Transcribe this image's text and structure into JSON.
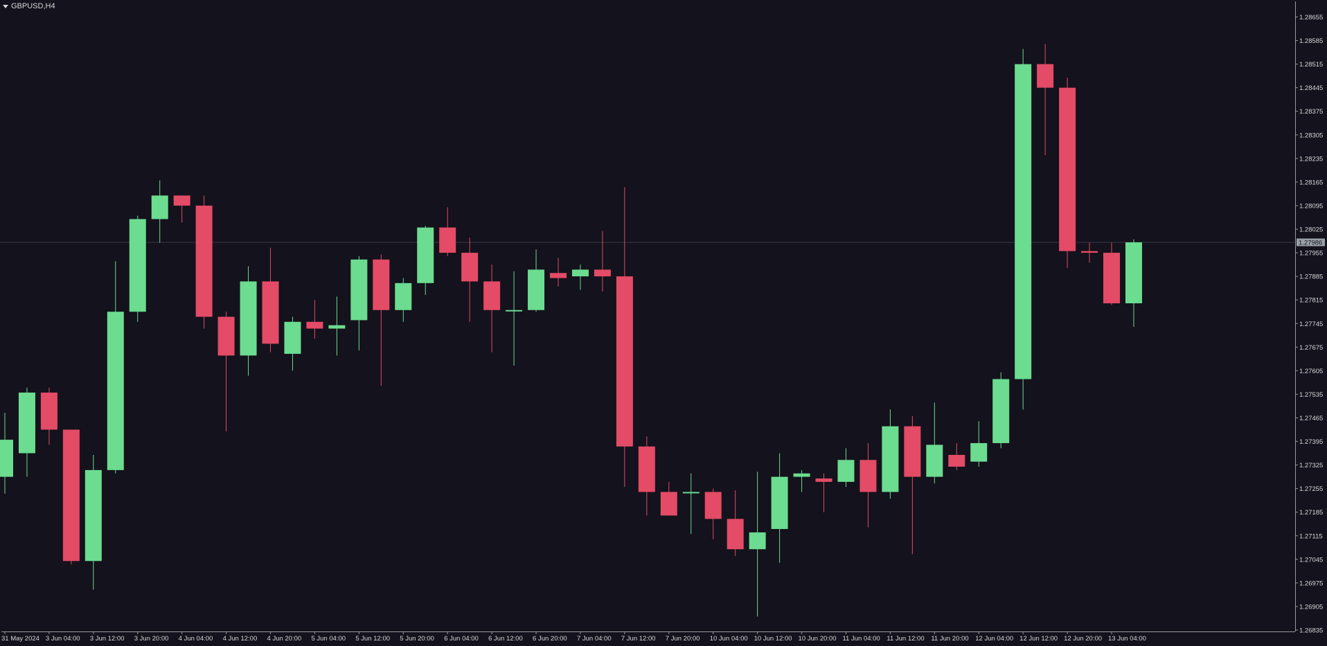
{
  "window": {
    "symbol_title": "GBPUSD,H4"
  },
  "colors": {
    "background": "#14121c",
    "bull": "#6bdc90",
    "bear": "#e34b66",
    "axis": "#9a9a9a",
    "text": "#d6d6d6",
    "current_line": "#3a3846",
    "price_tag_bg": "#9aa0aa"
  },
  "chart_data": {
    "type": "candlestick",
    "symbol": "GBPUSD",
    "timeframe": "H4",
    "ylim": [
      1.26835,
      1.28655
    ],
    "y_ticks": [
      "1.28655",
      "1.28585",
      "1.28515",
      "1.28445",
      "1.28375",
      "1.28305",
      "1.28235",
      "1.28165",
      "1.28095",
      "1.28025",
      "1.27955",
      "1.27885",
      "1.27815",
      "1.27745",
      "1.27675",
      "1.27605",
      "1.27535",
      "1.27465",
      "1.27395",
      "1.27325",
      "1.27255",
      "1.27185",
      "1.27115",
      "1.27045",
      "1.26975",
      "1.26905",
      "1.26835"
    ],
    "current_price": "1.27986",
    "x_ticks": [
      {
        "label": "31 May 2024",
        "index": 0
      },
      {
        "label": "3 Jun 04:00",
        "index": 2
      },
      {
        "label": "3 Jun 12:00",
        "index": 4
      },
      {
        "label": "3 Jun 20:00",
        "index": 6
      },
      {
        "label": "4 Jun 04:00",
        "index": 8
      },
      {
        "label": "4 Jun 12:00",
        "index": 10
      },
      {
        "label": "4 Jun 20:00",
        "index": 12
      },
      {
        "label": "5 Jun 04:00",
        "index": 14
      },
      {
        "label": "5 Jun 12:00",
        "index": 16
      },
      {
        "label": "5 Jun 20:00",
        "index": 18
      },
      {
        "label": "6 Jun 04:00",
        "index": 20
      },
      {
        "label": "6 Jun 12:00",
        "index": 22
      },
      {
        "label": "6 Jun 20:00",
        "index": 24
      },
      {
        "label": "7 Jun 04:00",
        "index": 26
      },
      {
        "label": "7 Jun 12:00",
        "index": 28
      },
      {
        "label": "7 Jun 20:00",
        "index": 30
      },
      {
        "label": "10 Jun 04:00",
        "index": 32
      },
      {
        "label": "10 Jun 12:00",
        "index": 34
      },
      {
        "label": "10 Jun 20:00",
        "index": 36
      },
      {
        "label": "11 Jun 04:00",
        "index": 38
      },
      {
        "label": "11 Jun 12:00",
        "index": 40
      },
      {
        "label": "11 Jun 20:00",
        "index": 42
      },
      {
        "label": "12 Jun 04:00",
        "index": 44
      },
      {
        "label": "12 Jun 12:00",
        "index": 46
      },
      {
        "label": "12 Jun 20:00",
        "index": 48
      },
      {
        "label": "13 Jun 04:00",
        "index": 50
      }
    ],
    "candles": [
      {
        "o": 1.2729,
        "h": 1.2748,
        "l": 1.2724,
        "c": 1.274
      },
      {
        "o": 1.2736,
        "h": 1.27555,
        "l": 1.2729,
        "c": 1.2754
      },
      {
        "o": 1.2754,
        "h": 1.27555,
        "l": 1.27385,
        "c": 1.2743
      },
      {
        "o": 1.2743,
        "h": 1.2743,
        "l": 1.2703,
        "c": 1.2704
      },
      {
        "o": 1.2704,
        "h": 1.27355,
        "l": 1.26955,
        "c": 1.2731
      },
      {
        "o": 1.2731,
        "h": 1.2793,
        "l": 1.273,
        "c": 1.2778
      },
      {
        "o": 1.2778,
        "h": 1.28065,
        "l": 1.2775,
        "c": 1.28055
      },
      {
        "o": 1.28055,
        "h": 1.2817,
        "l": 1.27985,
        "c": 1.28125
      },
      {
        "o": 1.28125,
        "h": 1.28125,
        "l": 1.28045,
        "c": 1.28095
      },
      {
        "o": 1.28095,
        "h": 1.28125,
        "l": 1.2773,
        "c": 1.27765
      },
      {
        "o": 1.27765,
        "h": 1.2778,
        "l": 1.27425,
        "c": 1.2765
      },
      {
        "o": 1.2765,
        "h": 1.27915,
        "l": 1.2759,
        "c": 1.2787
      },
      {
        "o": 1.2787,
        "h": 1.2797,
        "l": 1.2766,
        "c": 1.27685
      },
      {
        "o": 1.27655,
        "h": 1.27765,
        "l": 1.27605,
        "c": 1.2775
      },
      {
        "o": 1.2775,
        "h": 1.27815,
        "l": 1.277,
        "c": 1.2773
      },
      {
        "o": 1.2773,
        "h": 1.27825,
        "l": 1.2765,
        "c": 1.2774
      },
      {
        "o": 1.27755,
        "h": 1.27945,
        "l": 1.27665,
        "c": 1.27935
      },
      {
        "o": 1.27935,
        "h": 1.2795,
        "l": 1.2756,
        "c": 1.27785
      },
      {
        "o": 1.27785,
        "h": 1.2788,
        "l": 1.2775,
        "c": 1.27865
      },
      {
        "o": 1.27865,
        "h": 1.28035,
        "l": 1.2783,
        "c": 1.2803
      },
      {
        "o": 1.2803,
        "h": 1.2809,
        "l": 1.27945,
        "c": 1.27955
      },
      {
        "o": 1.27955,
        "h": 1.28,
        "l": 1.2775,
        "c": 1.2787
      },
      {
        "o": 1.2787,
        "h": 1.2792,
        "l": 1.2766,
        "c": 1.27785
      },
      {
        "o": 1.27785,
        "h": 1.279,
        "l": 1.2762,
        "c": 1.27785
      },
      {
        "o": 1.27785,
        "h": 1.27965,
        "l": 1.2778,
        "c": 1.27905
      },
      {
        "o": 1.27895,
        "h": 1.2794,
        "l": 1.27855,
        "c": 1.2788
      },
      {
        "o": 1.27885,
        "h": 1.2792,
        "l": 1.27845,
        "c": 1.27905
      },
      {
        "o": 1.27905,
        "h": 1.2802,
        "l": 1.2784,
        "c": 1.27885
      },
      {
        "o": 1.27885,
        "h": 1.2815,
        "l": 1.2726,
        "c": 1.2738
      },
      {
        "o": 1.2738,
        "h": 1.2741,
        "l": 1.27175,
        "c": 1.27245
      },
      {
        "o": 1.27245,
        "h": 1.27275,
        "l": 1.27175,
        "c": 1.27175
      },
      {
        "o": 1.27245,
        "h": 1.273,
        "l": 1.2712,
        "c": 1.27245
      },
      {
        "o": 1.27245,
        "h": 1.27255,
        "l": 1.27105,
        "c": 1.27165
      },
      {
        "o": 1.27165,
        "h": 1.2725,
        "l": 1.27055,
        "c": 1.27075
      },
      {
        "o": 1.27075,
        "h": 1.27305,
        "l": 1.26875,
        "c": 1.27125
      },
      {
        "o": 1.27135,
        "h": 1.2736,
        "l": 1.27035,
        "c": 1.2729
      },
      {
        "o": 1.2729,
        "h": 1.2731,
        "l": 1.27245,
        "c": 1.273
      },
      {
        "o": 1.27285,
        "h": 1.273,
        "l": 1.27185,
        "c": 1.27275
      },
      {
        "o": 1.27275,
        "h": 1.27375,
        "l": 1.2726,
        "c": 1.2734
      },
      {
        "o": 1.2734,
        "h": 1.2739,
        "l": 1.2714,
        "c": 1.27245
      },
      {
        "o": 1.27245,
        "h": 1.2749,
        "l": 1.27225,
        "c": 1.2744
      },
      {
        "o": 1.2744,
        "h": 1.2747,
        "l": 1.2706,
        "c": 1.2729
      },
      {
        "o": 1.2729,
        "h": 1.2751,
        "l": 1.2727,
        "c": 1.27385
      },
      {
        "o": 1.27355,
        "h": 1.2739,
        "l": 1.2731,
        "c": 1.2732
      },
      {
        "o": 1.27335,
        "h": 1.27455,
        "l": 1.2732,
        "c": 1.2739
      },
      {
        "o": 1.2739,
        "h": 1.276,
        "l": 1.27375,
        "c": 1.2758
      },
      {
        "o": 1.2758,
        "h": 1.2856,
        "l": 1.2749,
        "c": 1.28515
      },
      {
        "o": 1.28515,
        "h": 1.28575,
        "l": 1.28245,
        "c": 1.28445
      },
      {
        "o": 1.28445,
        "h": 1.28475,
        "l": 1.2791,
        "c": 1.2796
      },
      {
        "o": 1.2796,
        "h": 1.27985,
        "l": 1.27925,
        "c": 1.27955
      },
      {
        "o": 1.27955,
        "h": 1.27985,
        "l": 1.278,
        "c": 1.27805
      },
      {
        "o": 1.27805,
        "h": 1.27995,
        "l": 1.27735,
        "c": 1.27986
      }
    ]
  }
}
